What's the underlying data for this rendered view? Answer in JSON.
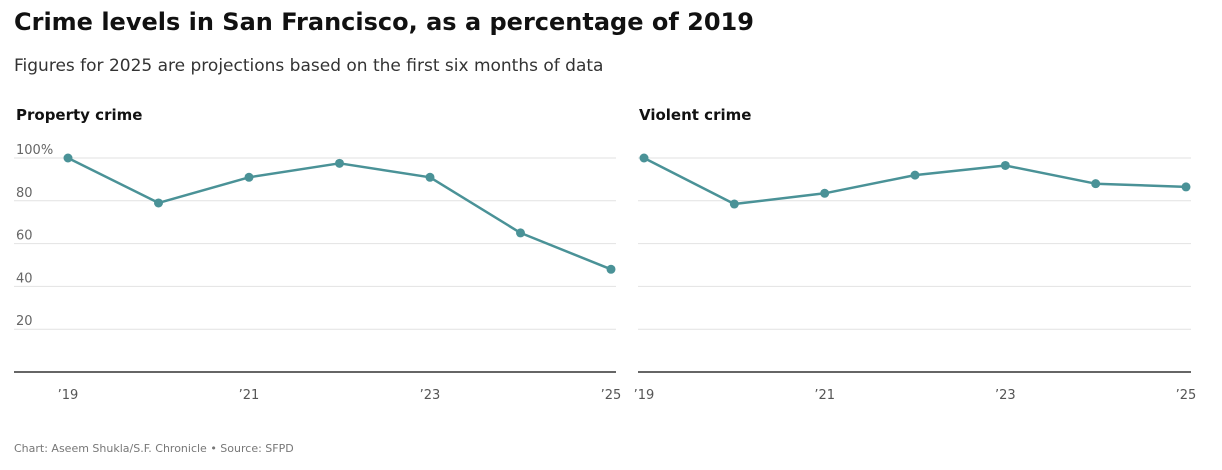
{
  "header": {
    "title": "Crime levels in San Francisco, as a percentage of 2019",
    "subtitle": "Figures for 2025 are projections based on the first six months of data"
  },
  "footer": {
    "credit": "Chart: Aseem Shukla/S.F. Chronicle • Source: SFPD"
  },
  "colors": {
    "line": "#4a9297",
    "grid": "#e2e2e2",
    "axis": "#333333"
  },
  "chart_data": [
    {
      "type": "line",
      "title": "Property crime",
      "x": [
        2019,
        2020,
        2021,
        2022,
        2023,
        2024,
        2025
      ],
      "values": [
        100,
        79,
        91,
        97.5,
        91,
        65,
        48
      ],
      "ylim": [
        0,
        100
      ],
      "yticks": [
        20,
        40,
        60,
        80,
        100
      ],
      "ytick_labels": [
        "20",
        "40",
        "60",
        "80",
        "100%"
      ],
      "xticks": [
        2019,
        2021,
        2023,
        2025
      ],
      "xtick_labels": [
        "’19",
        "’21",
        "’23",
        "’25"
      ],
      "grid": true
    },
    {
      "type": "line",
      "title": "Violent crime",
      "x": [
        2019,
        2020,
        2021,
        2022,
        2023,
        2024,
        2025
      ],
      "values": [
        100,
        78.5,
        83.5,
        92,
        96.5,
        88,
        86.5
      ],
      "ylim": [
        0,
        100
      ],
      "yticks": [
        20,
        40,
        60,
        80,
        100
      ],
      "ytick_labels": [],
      "xticks": [
        2019,
        2021,
        2023,
        2025
      ],
      "xtick_labels": [
        "’19",
        "’21",
        "’23",
        "’25"
      ],
      "grid": true
    }
  ]
}
